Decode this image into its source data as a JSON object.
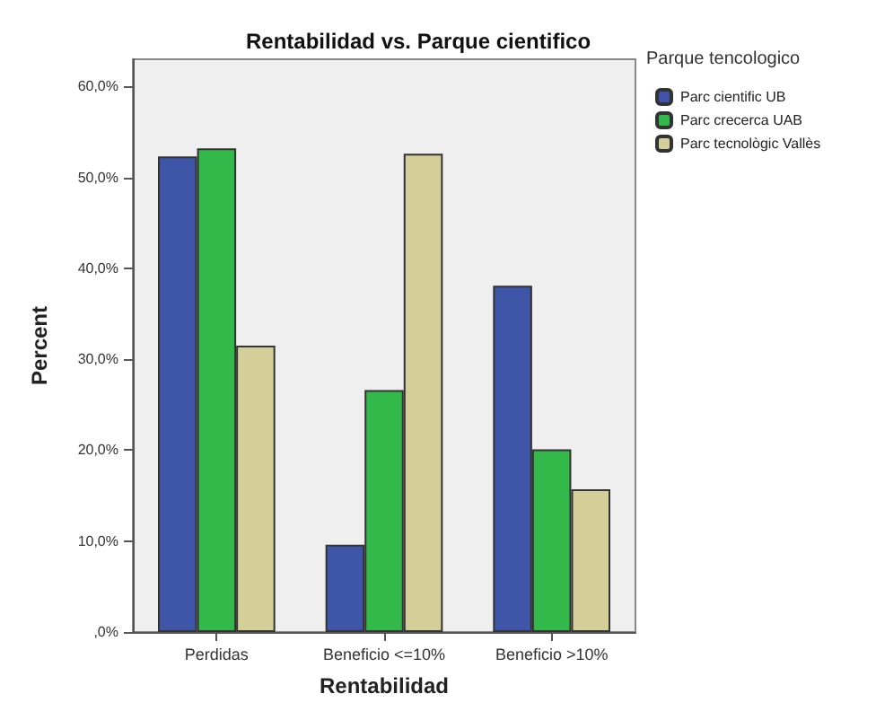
{
  "chart_data": {
    "type": "bar",
    "title": "Rentabilidad vs. Parque cientifico",
    "xlabel": "Rentabilidad",
    "ylabel": "Percent",
    "legend_title": "Parque tencologico",
    "categories": [
      "Perdidas",
      "Beneficio <=10%",
      "Beneficio >10%"
    ],
    "series": [
      {
        "name": "Parc cientific UB",
        "color": "#3f55a8",
        "values": [
          52.3,
          9.6,
          38.1
        ]
      },
      {
        "name": "Parc crecerca UAB",
        "color": "#33b84a",
        "values": [
          53.2,
          26.6,
          20.1
        ]
      },
      {
        "name": "Parc tecnològic Vallès",
        "color": "#d4cf98",
        "values": [
          31.5,
          52.6,
          15.7
        ]
      }
    ],
    "ylim": [
      0,
      63
    ],
    "yticks": [
      {
        "value": 0,
        "label": ",0%"
      },
      {
        "value": 10,
        "label": "10,0%"
      },
      {
        "value": 20,
        "label": "20,0%"
      },
      {
        "value": 30,
        "label": "30,0%"
      },
      {
        "value": 40,
        "label": "40,0%"
      },
      {
        "value": 50,
        "label": "50,0%"
      },
      {
        "value": 60,
        "label": "60,0%"
      }
    ],
    "grid": false,
    "legend": "top right"
  }
}
